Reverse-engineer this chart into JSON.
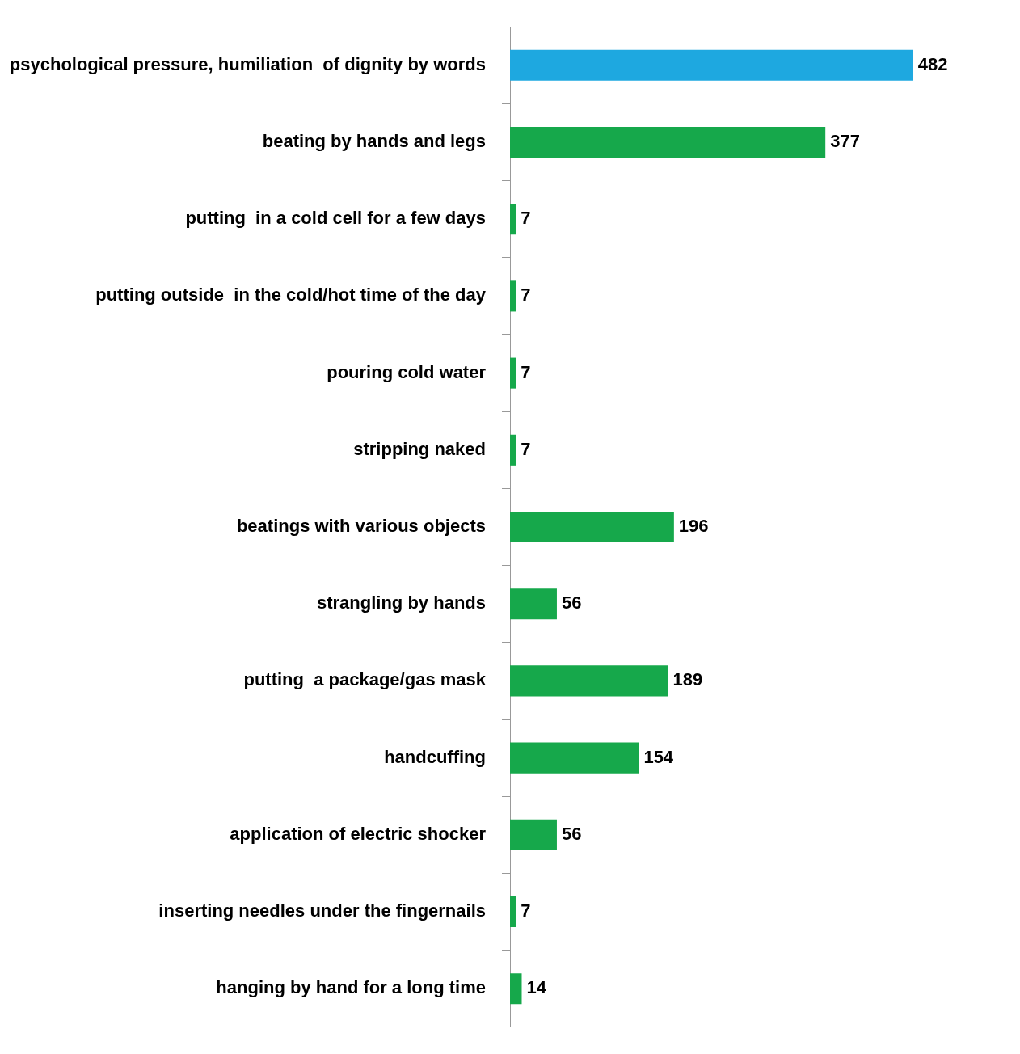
{
  "chart_data": {
    "type": "bar",
    "orientation": "horizontal",
    "categories": [
      "psychological pressure, humiliation  of dignity by words",
      "beating by hands and legs",
      "putting  in a cold cell for a few days",
      "putting outside  in the cold/hot time of the day",
      "pouring cold water",
      "stripping naked",
      "beatings with various objects",
      "strangling by hands",
      "putting  a package/gas mask",
      "handcuffing",
      "application of electric shocker",
      "inserting needles under the fingernails",
      "hanging by hand for a long time"
    ],
    "values": [
      482,
      377,
      7,
      7,
      7,
      7,
      196,
      56,
      189,
      154,
      56,
      7,
      14
    ],
    "colors": [
      "#1ea8e0",
      "#16a84b",
      "#16a84b",
      "#16a84b",
      "#16a84b",
      "#16a84b",
      "#16a84b",
      "#16a84b",
      "#16a84b",
      "#16a84b",
      "#16a84b",
      "#16a84b",
      "#16a84b"
    ],
    "data_labels": true,
    "legend": false,
    "grid": false
  }
}
